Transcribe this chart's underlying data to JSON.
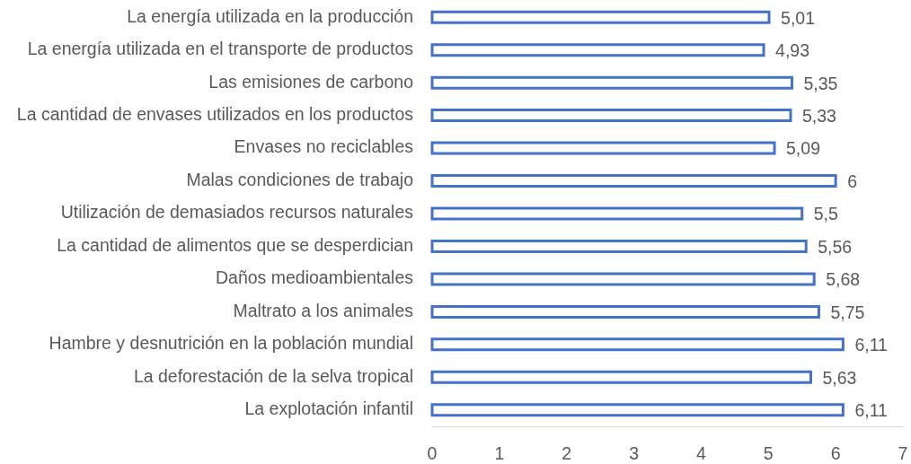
{
  "chart_data": {
    "type": "bar",
    "orientation": "horizontal",
    "categories": [
      "La energía utilizada en la producción",
      "La energía utilizada en el transporte de productos",
      "Las emisiones de carbono",
      "La cantidad de envases utilizados en los productos",
      "Envases no reciclables",
      "Malas condiciones de trabajo",
      "Utilización de demasiados recursos naturales",
      "La cantidad de alimentos que se desperdician",
      "Daños medioambientales",
      "Maltrato a los animales",
      "Hambre y desnutrición en la población mundial",
      "La deforestación de la selva tropical",
      "La explotación infantil"
    ],
    "values": [
      5.01,
      4.93,
      5.35,
      5.33,
      5.09,
      6,
      5.5,
      5.56,
      5.68,
      5.75,
      6.11,
      5.63,
      6.11
    ],
    "value_labels": [
      "5,01",
      "4,93",
      "5,35",
      "5,33",
      "5,09",
      "6",
      "5,5",
      "5,56",
      "5,68",
      "5,75",
      "6,11",
      "5,63",
      "6,11"
    ],
    "color": "#4472c4",
    "xlim": [
      0,
      7
    ],
    "xticks": [
      0,
      1,
      2,
      3,
      4,
      5,
      6,
      7
    ],
    "grid": false,
    "legend": false
  }
}
